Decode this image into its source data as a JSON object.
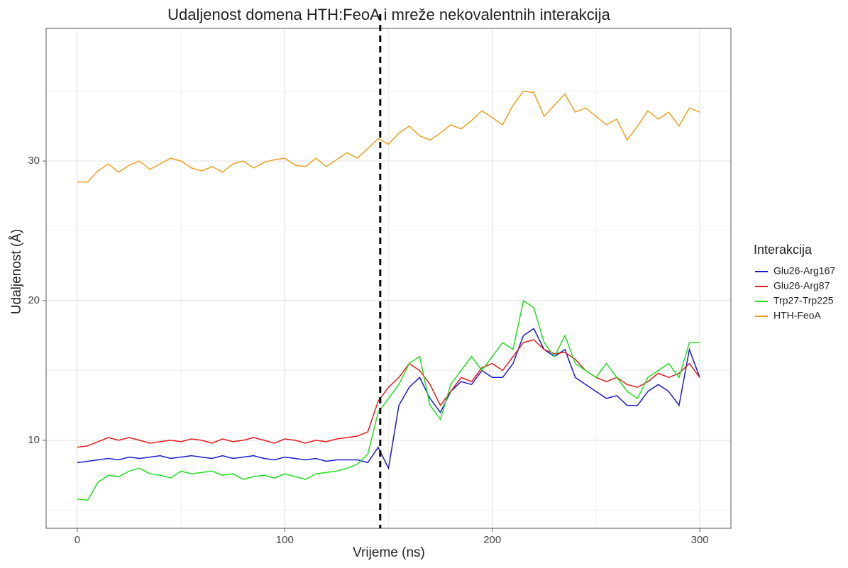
{
  "chart_data": {
    "type": "line",
    "title": "Udaljenost domena HTH:FeoA i mreže nekovalentnih interakcija",
    "x_label": "Vrijeme (ns)",
    "y_label": "Udaljenost (Å)",
    "legend_title": "Interakcija",
    "legend": "right",
    "x": [
      0,
      5,
      10,
      15,
      20,
      25,
      30,
      35,
      40,
      45,
      50,
      55,
      60,
      65,
      70,
      75,
      80,
      85,
      90,
      95,
      100,
      105,
      110,
      115,
      120,
      125,
      130,
      135,
      140,
      145,
      150,
      155,
      160,
      165,
      170,
      175,
      180,
      185,
      190,
      195,
      200,
      205,
      210,
      215,
      220,
      225,
      230,
      235,
      240,
      245,
      250,
      255,
      260,
      265,
      270,
      275,
      280,
      285,
      290,
      295,
      300
    ],
    "series": [
      {
        "name": "Glu26-Arg167",
        "color": "#1a1acd",
        "values": [
          8.4,
          8.5,
          8.6,
          8.7,
          8.6,
          8.8,
          8.7,
          8.8,
          8.9,
          8.7,
          8.8,
          8.9,
          8.8,
          8.7,
          8.9,
          8.7,
          8.8,
          8.9,
          8.7,
          8.6,
          8.8,
          8.7,
          8.6,
          8.7,
          8.5,
          8.6,
          8.6,
          8.6,
          8.4,
          9.5,
          8.0,
          12.5,
          13.8,
          14.5,
          13.0,
          12.0,
          13.5,
          14.2,
          14.0,
          15.0,
          14.5,
          14.5,
          15.5,
          17.5,
          18.0,
          16.5,
          16.0,
          16.5,
          14.5,
          14.0,
          13.5,
          13.0,
          13.2,
          12.5,
          12.5,
          13.5,
          14.0,
          13.5,
          12.5,
          16.5,
          14.5
        ]
      },
      {
        "name": "Glu26-Arg87",
        "color": "#e31a1c",
        "values": [
          9.5,
          9.6,
          9.9,
          10.2,
          10.0,
          10.2,
          10.0,
          9.8,
          9.9,
          10.0,
          9.9,
          10.1,
          10.0,
          9.8,
          10.1,
          9.9,
          10.0,
          10.2,
          10.0,
          9.8,
          10.1,
          10.0,
          9.8,
          10.0,
          9.9,
          10.1,
          10.2,
          10.3,
          10.6,
          12.8,
          13.8,
          14.5,
          15.5,
          15.0,
          14.0,
          12.5,
          13.5,
          14.5,
          14.2,
          15.2,
          15.5,
          15.0,
          16.0,
          17.0,
          17.2,
          16.5,
          16.2,
          16.3,
          15.8,
          15.0,
          14.5,
          14.2,
          14.5,
          14.0,
          13.8,
          14.2,
          14.8,
          14.5,
          14.8,
          15.5,
          14.5
        ]
      },
      {
        "name": "Trp27-Trp225",
        "color": "#1ee01e",
        "values": [
          5.8,
          5.7,
          7.0,
          7.5,
          7.4,
          7.8,
          8.0,
          7.6,
          7.5,
          7.3,
          7.8,
          7.6,
          7.7,
          7.8,
          7.5,
          7.6,
          7.2,
          7.4,
          7.5,
          7.3,
          7.6,
          7.4,
          7.2,
          7.6,
          7.7,
          7.8,
          8.0,
          8.3,
          9.0,
          12.0,
          13.0,
          14.0,
          15.5,
          16.0,
          12.5,
          11.5,
          14.0,
          15.0,
          16.0,
          15.0,
          16.0,
          17.0,
          16.5,
          20.0,
          19.5,
          17.0,
          16.0,
          17.5,
          15.5,
          15.0,
          14.5,
          15.5,
          14.5,
          13.5,
          13.0,
          14.5,
          15.0,
          15.5,
          14.5,
          17.0,
          17.0
        ]
      },
      {
        "name": "HTH-FeoA",
        "color": "#f0a020",
        "values": [
          28.5,
          28.5,
          29.3,
          29.8,
          29.2,
          29.7,
          30.0,
          29.4,
          29.8,
          30.2,
          30.0,
          29.5,
          29.3,
          29.6,
          29.2,
          29.8,
          30.0,
          29.5,
          29.9,
          30.1,
          30.2,
          29.7,
          29.6,
          30.2,
          29.6,
          30.1,
          30.6,
          30.2,
          30.9,
          31.6,
          31.2,
          32.0,
          32.5,
          31.8,
          31.5,
          32.0,
          32.6,
          32.3,
          32.9,
          33.6,
          33.1,
          32.6,
          34.0,
          35.0,
          34.9,
          33.2,
          34.0,
          34.8,
          33.5,
          33.8,
          33.2,
          32.6,
          33.0,
          31.5,
          32.5,
          33.6,
          33.0,
          33.5,
          32.5,
          33.8,
          33.5
        ]
      }
    ],
    "vline": 146,
    "xlim": [
      -15,
      315
    ],
    "xticks": [
      0,
      100,
      200,
      300
    ],
    "minor_xticks": [
      50,
      150,
      250
    ],
    "ylim": [
      3.7,
      39.5
    ],
    "yticks": [
      10,
      20,
      30
    ],
    "minor_yticks": [
      5,
      15,
      25,
      35
    ],
    "grid": true
  }
}
